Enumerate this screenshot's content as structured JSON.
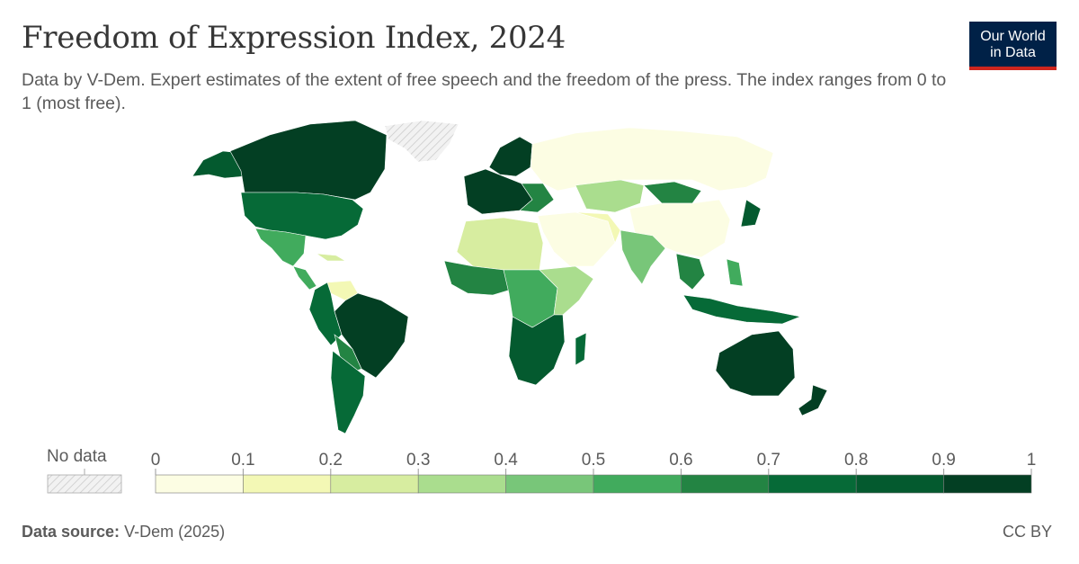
{
  "header": {
    "title": "Freedom of Expression Index, 2024",
    "subtitle": "Data by V-Dem. Expert estimates of the extent of free speech and the freedom of the press. The index ranges from 0 to 1 (most free)."
  },
  "logo": {
    "line1": "Our World",
    "line2": "in Data",
    "bg": "#002147",
    "accent": "#ce261e"
  },
  "legend": {
    "no_data_label": "No data",
    "ticks": [
      "0",
      "0.1",
      "0.2",
      "0.3",
      "0.4",
      "0.5",
      "0.6",
      "0.7",
      "0.8",
      "0.9",
      "1"
    ],
    "bins": [
      {
        "from": 0.0,
        "to": 0.1,
        "color": "#fcfde3"
      },
      {
        "from": 0.1,
        "to": 0.2,
        "color": "#f3f8b5"
      },
      {
        "from": 0.2,
        "to": 0.3,
        "color": "#d7eda0"
      },
      {
        "from": 0.3,
        "to": 0.4,
        "color": "#aadd8e"
      },
      {
        "from": 0.4,
        "to": 0.5,
        "color": "#78c679"
      },
      {
        "from": 0.5,
        "to": 0.6,
        "color": "#41ab5d"
      },
      {
        "from": 0.6,
        "to": 0.7,
        "color": "#238443"
      },
      {
        "from": 0.7,
        "to": 0.8,
        "color": "#066a37"
      },
      {
        "from": 0.8,
        "to": 0.9,
        "color": "#045a2f"
      },
      {
        "from": 0.9,
        "to": 1.0,
        "color": "#033f23"
      }
    ]
  },
  "footer": {
    "source_label": "Data source:",
    "source_value": "V-Dem (2025)",
    "license": "CC BY"
  }
}
